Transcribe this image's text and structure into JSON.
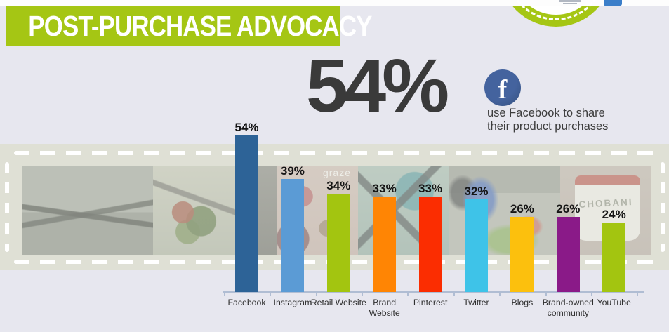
{
  "header": {
    "title": "POST-PURCHASE ADVOCACY"
  },
  "highlight": {
    "value": "54%",
    "caption_line1": "use Facebook to share",
    "caption_line2": "their product purchases",
    "facebook_icon_letter": "f"
  },
  "colors": {
    "banner_green": "#a5c614",
    "page_background": "#e7e7ef",
    "strip_background": "#dfe0d5",
    "facebook_blue": "#3b5a97",
    "big_number_gray": "#3a3a3a",
    "axis": "#b0bdd3"
  },
  "photo_strip": {
    "photos": [
      {
        "name": "rainy-street",
        "text": ""
      },
      {
        "name": "salad-bowl",
        "text": ""
      },
      {
        "name": "dark-desk",
        "text": ""
      },
      {
        "name": "graze-box",
        "text": "graze"
      },
      {
        "name": "backpack",
        "text": ""
      },
      {
        "name": "shoppers",
        "text": ""
      },
      {
        "name": "chobani-cup",
        "text": "CHOBANI"
      }
    ]
  },
  "chart_data": {
    "type": "bar",
    "title": "",
    "xlabel": "",
    "ylabel": "",
    "categories": [
      "Facebook",
      "Instagram",
      "Retail Website",
      "Brand Website",
      "Pinterest",
      "Twitter",
      "Blogs",
      "Brand-owned community",
      "YouTube"
    ],
    "values": [
      54,
      39,
      34,
      33,
      33,
      32,
      26,
      26,
      24
    ],
    "value_labels": [
      "54%",
      "39%",
      "34%",
      "33%",
      "33%",
      "32%",
      "26%",
      "26%",
      "24%"
    ],
    "bar_colors": [
      "#2d6397",
      "#5b9bd5",
      "#a3c510",
      "#ff8504",
      "#fb2d01",
      "#3ec3e8",
      "#fcc00d",
      "#8a1a88",
      "#a3c510"
    ],
    "ylim": [
      0,
      60
    ],
    "grid": false,
    "legend": null
  }
}
